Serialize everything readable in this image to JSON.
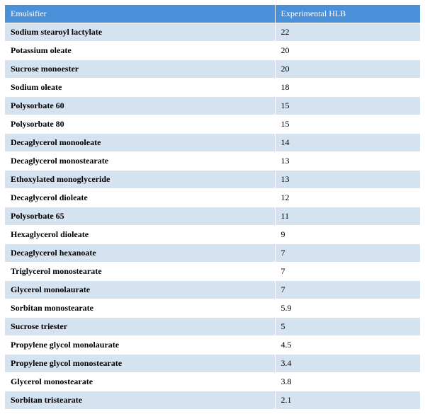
{
  "table": {
    "header_bg": "#4a90d9",
    "header_text_color": "#ffffff",
    "row_colors": [
      "#d5e3f0",
      "#ffffff"
    ],
    "border_color": "#ffffff",
    "columns": [
      "Emulsifier",
      "Experimental HLB"
    ],
    "rows": [
      [
        "Sodium stearoyl lactylate",
        "22"
      ],
      [
        "Potassium oleate",
        "20"
      ],
      [
        "Sucrose monoester",
        "20"
      ],
      [
        "Sodium oleate",
        "18"
      ],
      [
        "Polysorbate 60",
        "15"
      ],
      [
        "Polysorbate 80",
        "15"
      ],
      [
        "Decaglycerol monooleate",
        "14"
      ],
      [
        "Decaglycerol monostearate",
        "13"
      ],
      [
        "Ethoxylated monoglyceride",
        "13"
      ],
      [
        "Decaglycerol dioleate",
        "12"
      ],
      [
        "Polysorbate 65",
        "11"
      ],
      [
        "Hexaglycerol dioleate",
        "9"
      ],
      [
        "Decaglycerol hexanoate",
        "7"
      ],
      [
        "Triglycerol monostearate",
        "7"
      ],
      [
        "Glycerol monolaurate",
        "7"
      ],
      [
        "Sorbitan monostearate",
        "5.9"
      ],
      [
        "Sucrose triester",
        "5"
      ],
      [
        "Propylene glycol monolaurate",
        "4.5"
      ],
      [
        "Propylene glycol monostearate",
        "3.4"
      ],
      [
        "Glycerol monostearate",
        "3.8"
      ],
      [
        "Sorbitan tristearate",
        "2.1"
      ]
    ]
  }
}
